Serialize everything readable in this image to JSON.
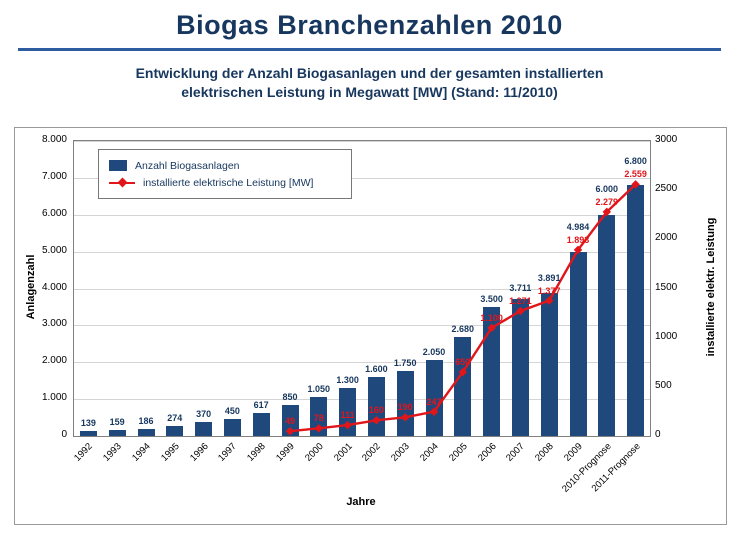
{
  "header": {
    "title": "Biogas Branchenzahlen 2010"
  },
  "subtitle": {
    "line1": "Entwicklung der Anzahl Biogasanlagen und der gesamten installierten",
    "line2": "elektrischen Leistung in Megawatt [MW] (Stand: 11/2010)"
  },
  "colors": {
    "title_blue": "#17375E",
    "rule_blue": "#2E5C9E",
    "bar_blue": "#1F497D",
    "line_red": "#E0161B"
  },
  "chart_data": {
    "type": "bar",
    "subtype": "bar+line combo, dual axis",
    "categories": [
      "1992",
      "1993",
      "1994",
      "1995",
      "1996",
      "1997",
      "1998",
      "1999",
      "2000",
      "2001",
      "2002",
      "2003",
      "2004",
      "2005",
      "2006",
      "2007",
      "2008",
      "2009",
      "2010-Prognose",
      "2011-Prognose"
    ],
    "series": [
      {
        "name": "Anzahl Biogasanlagen",
        "type": "bar",
        "axis": "left",
        "color": "#1F497D",
        "values": [
          139,
          159,
          186,
          274,
          370,
          450,
          617,
          850,
          1050,
          1300,
          1600,
          1750,
          2050,
          2680,
          3500,
          3711,
          3891,
          4984,
          6000,
          6800
        ]
      },
      {
        "name": "installierte elektrische Leistung [MW]",
        "type": "line",
        "axis": "right",
        "color": "#E0161B",
        "values": [
          null,
          null,
          null,
          null,
          null,
          null,
          null,
          49,
          78,
          111,
          160,
          190,
          247,
          650,
          1100,
          1271,
          1377,
          1893,
          2279,
          2559
        ]
      }
    ],
    "left_axis": {
      "label": "Anlagenzahl",
      "min": 0,
      "max": 8000,
      "step": 1000
    },
    "right_axis": {
      "label": "installierte elektr. Leistung",
      "min": 0,
      "max": 3000,
      "step": 500
    },
    "xlabel": "Jahre",
    "grid": true,
    "legend_position": "top-left"
  }
}
